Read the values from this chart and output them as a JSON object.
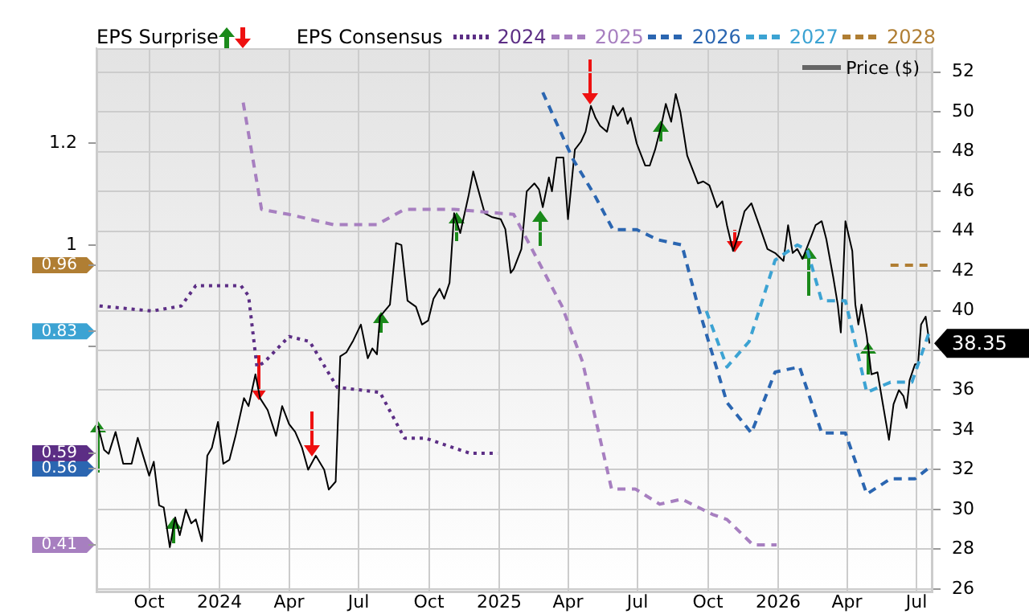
{
  "chart_data": {
    "type": "line",
    "annotations": [
      "EPS Surprise"
    ],
    "legend_title": "EPS Consensus",
    "legend": "top",
    "grid": true,
    "xlim": [
      "2023-07-24",
      "2026-07-22"
    ],
    "xticks": [
      {
        "value": "2023-10-01",
        "label": "Oct"
      },
      {
        "value": "2024-01-01",
        "label": "2024"
      },
      {
        "value": "2024-04-01",
        "label": "Apr"
      },
      {
        "value": "2024-07-01",
        "label": "Jul"
      },
      {
        "value": "2024-10-01",
        "label": "Oct"
      },
      {
        "value": "2025-01-01",
        "label": "2025"
      },
      {
        "value": "2025-04-01",
        "label": "Apr"
      },
      {
        "value": "2025-07-01",
        "label": "Jul"
      },
      {
        "value": "2025-10-01",
        "label": "Oct"
      },
      {
        "value": "2026-01-01",
        "label": "2026"
      },
      {
        "value": "2026-04-01",
        "label": "Apr"
      },
      {
        "value": "2026-07-01",
        "label": "Jul"
      }
    ],
    "ylim": [
      0.317,
      1.387
    ],
    "yticks": [
      0.41,
      0.56,
      0.59,
      {
        "value": 0.8,
        "label": null
      },
      0.83,
      0.96,
      1,
      1.2
    ],
    "y2lim": [
      25.84,
      53.2
    ],
    "y2ticks": [
      26,
      28,
      30,
      32,
      34,
      36,
      {
        "value": 38,
        "label": null
      },
      40,
      42,
      44,
      46,
      48,
      50,
      52
    ],
    "series": [
      {
        "name": "2024",
        "color": "#5c2e85",
        "line_style": "dotted",
        "x": [
          "2023-07-28",
          "2023-10-05",
          "2023-11-12",
          "2023-12-01",
          "2024-01-01",
          "2024-01-29",
          "2024-02-08",
          "2024-02-19",
          "2024-02-29",
          "2024-04-01",
          "2024-04-28",
          "2024-06-03",
          "2024-07-29",
          "2024-08-30",
          "2024-09-26",
          "2024-11-24",
          "2024-12-30"
        ],
        "values": [
          0.88,
          0.87,
          0.88,
          0.92,
          0.92,
          0.92,
          0.9,
          0.76,
          0.77,
          0.82,
          0.81,
          0.72,
          0.71,
          0.62,
          0.62,
          0.59,
          0.59
        ]
      },
      {
        "name": "2025",
        "color": "#a77fc0",
        "line_style": "dashed",
        "x": [
          "2024-02-01",
          "2024-02-25",
          "2024-04-01",
          "2024-05-29",
          "2024-07-25",
          "2024-08-30",
          "2024-11-03",
          "2025-01-20",
          "2025-03-24",
          "2025-04-20",
          "2025-05-28",
          "2025-06-28",
          "2025-07-30",
          "2025-08-28",
          "2025-10-07",
          "2025-10-26",
          "2025-11-29",
          "2025-12-30"
        ],
        "values": [
          1.28,
          1.07,
          1.06,
          1.04,
          1.04,
          1.07,
          1.07,
          1.06,
          0.88,
          0.77,
          0.52,
          0.52,
          0.49,
          0.5,
          0.47,
          0.46,
          0.41,
          0.41
        ]
      },
      {
        "name": "2026",
        "color": "#2b66b1",
        "line_style": "dashed",
        "x": [
          "2025-02-27",
          "2025-04-07",
          "2025-05-05",
          "2025-05-30",
          "2025-06-30",
          "2025-07-28",
          "2025-08-28",
          "2025-09-18",
          "2025-10-26",
          "2025-11-27",
          "2025-12-28",
          "2026-01-29",
          "2026-02-27",
          "2026-03-30",
          "2026-04-27",
          "2026-05-28",
          "2026-06-29",
          "2026-07-16"
        ],
        "values": [
          1.3,
          1.17,
          1.1,
          1.03,
          1.03,
          1.01,
          1.0,
          0.88,
          0.69,
          0.63,
          0.75,
          0.76,
          0.63,
          0.63,
          0.51,
          0.54,
          0.54,
          0.56
        ]
      },
      {
        "name": "2027",
        "color": "#3ca3d3",
        "line_style": "dashed",
        "x": [
          "2025-09-29",
          "2025-10-26",
          "2025-11-24",
          "2025-12-09",
          "2025-12-28",
          "2026-01-26",
          "2026-02-08",
          "2026-02-27",
          "2026-03-30",
          "2026-04-27",
          "2026-05-28",
          "2026-06-25",
          "2026-07-18"
        ],
        "values": [
          0.87,
          0.76,
          0.81,
          0.88,
          0.97,
          1.0,
          0.99,
          0.89,
          0.89,
          0.71,
          0.73,
          0.73,
          0.83
        ]
      },
      {
        "name": "2028",
        "color": "#b07e33",
        "line_style": "dashed",
        "x": [
          "2026-05-28",
          "2026-07-16"
        ],
        "values": [
          0.96,
          0.96
        ]
      },
      {
        "name": "Price ($)",
        "color": "#000000",
        "axis": "y2",
        "line_style": "solid",
        "x": [
          "2023-07-26",
          "2023-08-03",
          "2023-08-09",
          "2023-08-18",
          "2023-08-28",
          "2023-09-08",
          "2023-09-16",
          "2023-10-01",
          "2023-10-07",
          "2023-10-14",
          "2023-10-20",
          "2023-10-28",
          "2023-11-04",
          "2023-11-10",
          "2023-11-18",
          "2023-11-25",
          "2023-12-01",
          "2023-12-09",
          "2023-12-16",
          "2023-12-22",
          "2023-12-30",
          "2024-01-06",
          "2024-01-14",
          "2024-01-22",
          "2024-02-02",
          "2024-02-08",
          "2024-02-17",
          "2024-02-23",
          "2024-03-04",
          "2024-03-15",
          "2024-03-23",
          "2024-04-01",
          "2024-04-09",
          "2024-04-18",
          "2024-04-26",
          "2024-05-06",
          "2024-05-17",
          "2024-05-23",
          "2024-06-01",
          "2024-06-07",
          "2024-06-15",
          "2024-06-24",
          "2024-07-04",
          "2024-07-13",
          "2024-07-19",
          "2024-07-25",
          "2024-07-29",
          "2024-08-11",
          "2024-08-19",
          "2024-08-26",
          "2024-09-03",
          "2024-09-14",
          "2024-09-22",
          "2024-09-30",
          "2024-10-07",
          "2024-10-15",
          "2024-10-21",
          "2024-10-28",
          "2024-11-03",
          "2024-11-11",
          "2024-11-22",
          "2024-11-28",
          "2024-12-13",
          "2024-12-23",
          "2025-01-03",
          "2025-01-09",
          "2025-01-16",
          "2025-01-20",
          "2025-01-30",
          "2025-02-06",
          "2025-02-16",
          "2025-02-22",
          "2025-02-27",
          "2025-03-07",
          "2025-03-11",
          "2025-03-17",
          "2025-03-26",
          "2025-04-01",
          "2025-04-10",
          "2025-04-18",
          "2025-04-24",
          "2025-05-01",
          "2025-05-07",
          "2025-05-13",
          "2025-05-22",
          "2025-05-30",
          "2025-06-05",
          "2025-06-12",
          "2025-06-18",
          "2025-06-22",
          "2025-06-30",
          "2025-07-11",
          "2025-07-17",
          "2025-07-24",
          "2025-08-01",
          "2025-08-07",
          "2025-08-14",
          "2025-08-20",
          "2025-08-26",
          "2025-09-04",
          "2025-09-18",
          "2025-09-25",
          "2025-10-03",
          "2025-10-13",
          "2025-10-20",
          "2025-10-26",
          "2025-11-03",
          "2025-11-10",
          "2025-11-18",
          "2025-11-27",
          "2025-12-09",
          "2025-12-18",
          "2025-12-28",
          "2026-01-08",
          "2026-01-14",
          "2026-01-20",
          "2026-01-26",
          "2026-02-02",
          "2026-02-10",
          "2026-02-19",
          "2026-02-27",
          "2026-03-05",
          "2026-03-14",
          "2026-03-20",
          "2026-03-24",
          "2026-03-30",
          "2026-04-08",
          "2026-04-12",
          "2026-04-16",
          "2026-04-20",
          "2026-04-27",
          "2026-05-03",
          "2026-05-11",
          "2026-05-18",
          "2026-05-26",
          "2026-06-01",
          "2026-06-08",
          "2026-06-14",
          "2026-06-18",
          "2026-06-22",
          "2026-06-29",
          "2026-07-03",
          "2026-07-07",
          "2026-07-13",
          "2026-07-18"
        ],
        "values": [
          34.2,
          33.0,
          32.8,
          33.9,
          32.3,
          32.3,
          33.6,
          31.7,
          32.4,
          30.2,
          30.1,
          28.1,
          29.6,
          28.7,
          30.0,
          29.3,
          29.5,
          28.4,
          32.7,
          33.1,
          34.4,
          32.3,
          32.5,
          33.7,
          35.6,
          35.2,
          36.8,
          35.6,
          35.0,
          33.7,
          35.2,
          34.3,
          33.9,
          33.1,
          32.0,
          32.7,
          32.0,
          31.0,
          31.4,
          37.7,
          37.9,
          38.5,
          39.3,
          37.6,
          38.1,
          37.8,
          39.7,
          40.3,
          43.4,
          43.3,
          40.5,
          40.2,
          39.3,
          39.5,
          40.6,
          41.1,
          40.6,
          41.4,
          44.9,
          43.9,
          45.8,
          47.0,
          44.9,
          44.7,
          44.6,
          44.1,
          41.9,
          42.1,
          43.1,
          46.0,
          46.4,
          46.1,
          45.2,
          46.7,
          46.0,
          47.7,
          47.7,
          44.6,
          48.1,
          48.5,
          49.0,
          50.3,
          49.7,
          49.3,
          49.0,
          50.3,
          49.8,
          50.2,
          49.4,
          49.7,
          48.4,
          47.3,
          47.3,
          48.1,
          49.3,
          50.4,
          49.5,
          50.9,
          50.0,
          47.8,
          46.4,
          46.5,
          46.3,
          45.2,
          45.5,
          44.3,
          43.0,
          43.8,
          45.0,
          45.4,
          44.1,
          43.1,
          42.9,
          42.5,
          44.3,
          42.9,
          43.1,
          42.6,
          43.4,
          44.3,
          44.5,
          43.6,
          41.7,
          40.3,
          38.9,
          44.5,
          43.0,
          40.3,
          39.3,
          40.3,
          38.7,
          36.8,
          36.9,
          35.3,
          33.5,
          35.3,
          36.0,
          35.7,
          35.1,
          36.5,
          37.3,
          37.3,
          39.3,
          39.7,
          38.35
        ],
        "value_labels": [
          null,
          null,
          null,
          null,
          null,
          null,
          null,
          null,
          null,
          null,
          null,
          null,
          null,
          null,
          null,
          null,
          null,
          null,
          null,
          null,
          null,
          null,
          null,
          null,
          null,
          null,
          null,
          null,
          null,
          null,
          null,
          null,
          null,
          null,
          null,
          null,
          null,
          null,
          null,
          null,
          null,
          null,
          null,
          null,
          null,
          null,
          null,
          null,
          null,
          null,
          null,
          null,
          null,
          null,
          null,
          null,
          null,
          null,
          null,
          null,
          null,
          null,
          null,
          null,
          null,
          null,
          null,
          null,
          null,
          null,
          null,
          null,
          null,
          null,
          null,
          null,
          null,
          null,
          null,
          null,
          null,
          null,
          null,
          null,
          null,
          null,
          null,
          null,
          null,
          null,
          null,
          null,
          null,
          null,
          null,
          null,
          null,
          null,
          null,
          null,
          null,
          null,
          null,
          null,
          null,
          null,
          null,
          null,
          null,
          null,
          null,
          null,
          null,
          null,
          null,
          null,
          null,
          null,
          null,
          null,
          null,
          null,
          null,
          null,
          null,
          null,
          null,
          null,
          null,
          null,
          null,
          null,
          null,
          null,
          null,
          null,
          null,
          null,
          null,
          null,
          null,
          null,
          null,
          null,
          "38.35"
        ]
      }
    ]
  }
}
